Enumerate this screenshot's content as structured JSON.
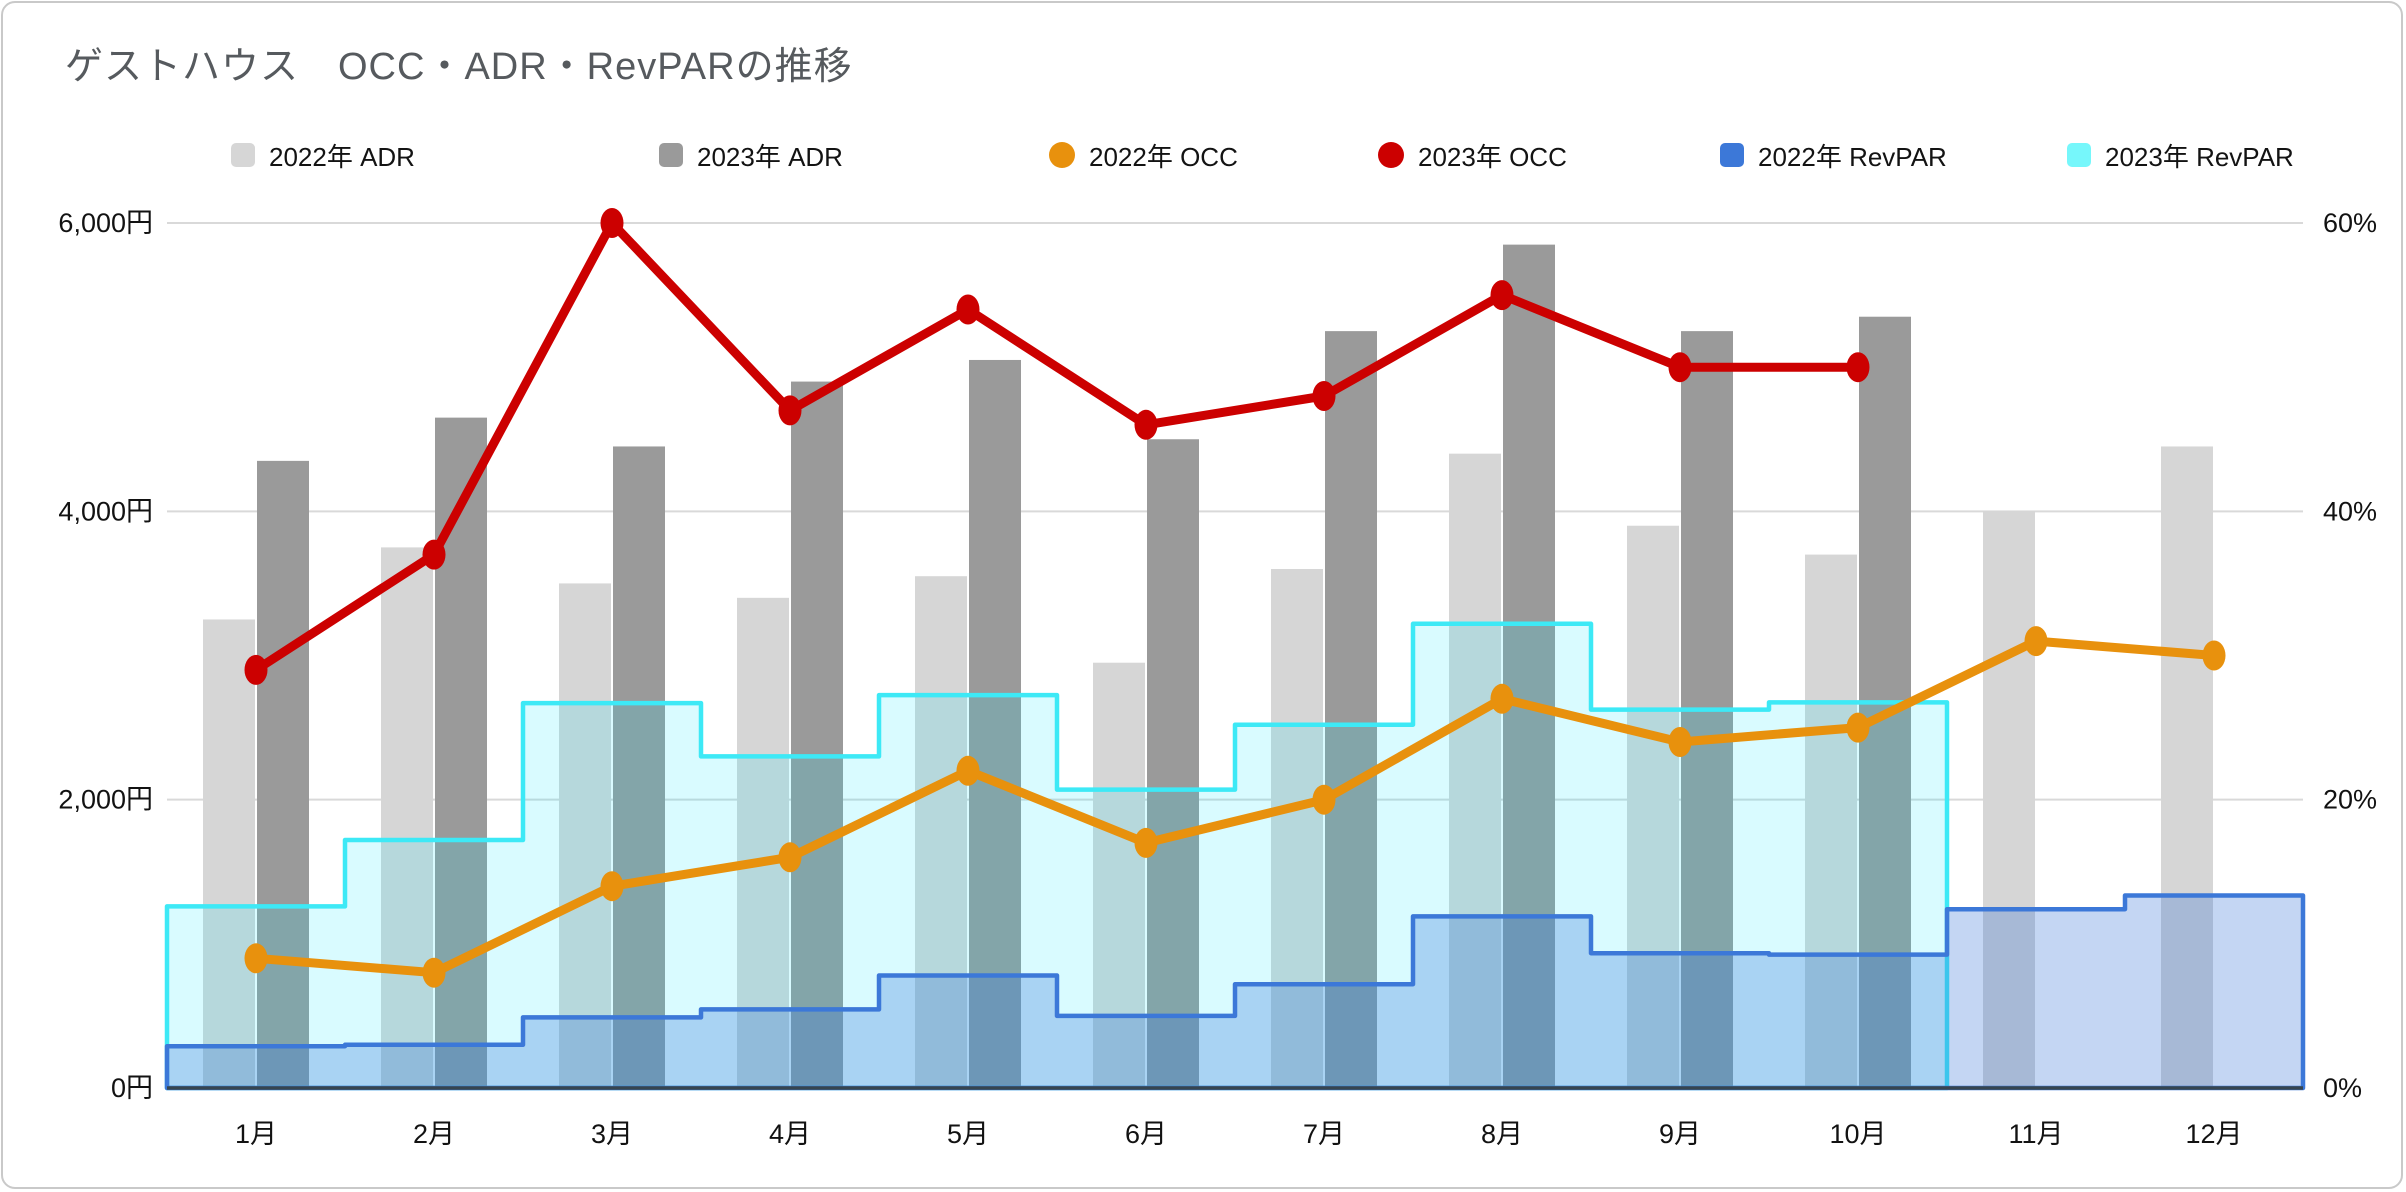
{
  "header": {
    "title": "ゲストハウス　OCC・ADR・RevPARの推移"
  },
  "legend": {
    "items": [
      {
        "label": "2022年 ADR",
        "marker": "square",
        "color": "#d6d6d6"
      },
      {
        "label": "2023年 ADR",
        "marker": "square",
        "color": "#9a9a9a"
      },
      {
        "label": "2022年 OCC",
        "marker": "circle",
        "color": "#e8910d"
      },
      {
        "label": "2023年 OCC",
        "marker": "circle",
        "color": "#cc0000"
      },
      {
        "label": "2022年 RevPAR",
        "marker": "square",
        "color": "#3c78d8"
      },
      {
        "label": "2023年 RevPAR",
        "marker": "square",
        "color": "#76f7fb"
      }
    ]
  },
  "chart_data": {
    "type": "combo",
    "title": "ゲストハウス　OCC・ADR・RevPARの推移",
    "categories": [
      "1月",
      "2月",
      "3月",
      "4月",
      "5月",
      "6月",
      "7月",
      "8月",
      "9月",
      "10月",
      "11月",
      "12月"
    ],
    "y_left": {
      "label": "円",
      "min": 0,
      "max": 6000,
      "tick_values": [
        0,
        2000,
        4000,
        6000
      ],
      "tick_labels": [
        "0円",
        "2,000円",
        "4,000円",
        "6,000円"
      ]
    },
    "y_right": {
      "label": "%",
      "min": 0,
      "max": 60,
      "tick_values": [
        0,
        20,
        40,
        60
      ],
      "tick_labels": [
        "0%",
        "20%",
        "40%",
        "60%"
      ]
    },
    "grid": true,
    "legend_position": "top",
    "series": [
      {
        "name": "2022年 ADR",
        "type": "bar",
        "axis": "yen",
        "color": "#d6d6d6",
        "values": [
          3250,
          3750,
          3500,
          3400,
          3550,
          2950,
          3600,
          4400,
          3900,
          3700,
          4000,
          4450
        ]
      },
      {
        "name": "2023年 ADR",
        "type": "bar",
        "axis": "yen",
        "color": "#9a9a9a",
        "values": [
          4350,
          4650,
          4450,
          4900,
          5050,
          4500,
          5250,
          5850,
          5250,
          5350,
          null,
          null
        ]
      },
      {
        "name": "2023年 RevPAR",
        "type": "stepped-area",
        "axis": "yen",
        "color": "#3de9f6",
        "fill": "rgba(0,229,255,0.15)",
        "values": [
          1260,
          1720,
          2670,
          2300,
          2725,
          2070,
          2520,
          3220,
          2625,
          2675,
          null,
          null
        ]
      },
      {
        "name": "2022年 RevPAR",
        "type": "stepped-area",
        "axis": "yen",
        "color": "#3c78d8",
        "fill": "rgba(60,120,216,0.30)",
        "values": [
          290,
          300,
          490,
          545,
          780,
          500,
          720,
          1190,
          935,
          925,
          1240,
          1335
        ]
      },
      {
        "name": "2022年 OCC",
        "type": "line",
        "axis": "pct",
        "color": "#e8910d",
        "values": [
          9,
          8,
          14,
          16,
          22,
          17,
          20,
          27,
          24,
          25,
          31,
          30
        ]
      },
      {
        "name": "2023年 OCC",
        "type": "line",
        "axis": "pct",
        "color": "#cc0000",
        "values": [
          29,
          37,
          60,
          47,
          54,
          46,
          48,
          55,
          50,
          50,
          null,
          null
        ]
      }
    ]
  }
}
